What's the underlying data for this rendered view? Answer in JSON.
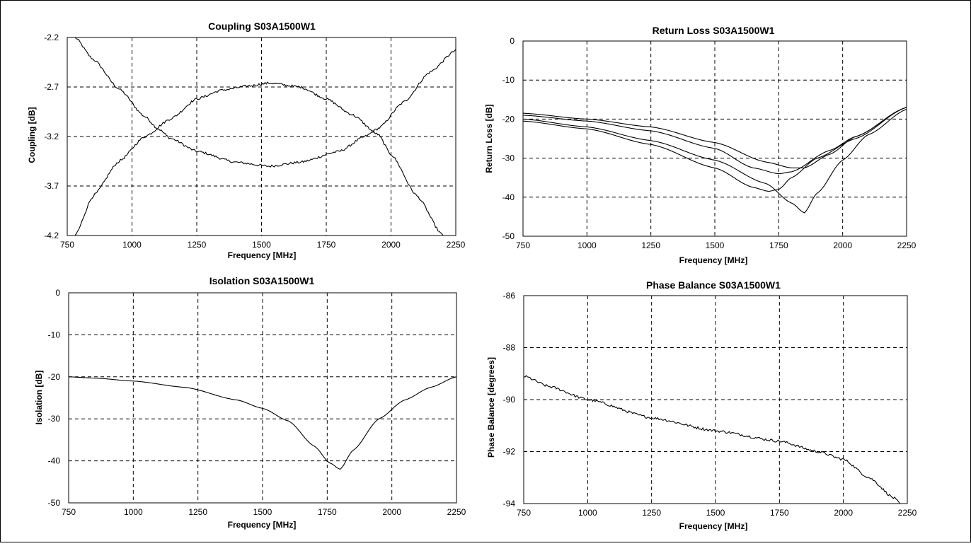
{
  "chart_data": [
    {
      "type": "line",
      "title": "Coupling S03A1500W1",
      "xlabel": "Frequency [MHz]",
      "ylabel": "Coupling [dB]",
      "xlim": [
        750,
        2250
      ],
      "ylim": [
        -4.2,
        -2.2
      ],
      "xticks": [
        "750",
        "1000",
        "1250",
        "1500",
        "1750",
        "2000",
        "2250"
      ],
      "yticks": [
        "-2.2",
        "-2.7",
        "-3.2",
        "-3.7",
        "-4.2"
      ],
      "grid": true,
      "series": [
        {
          "x": [
            780,
            850,
            950,
            1050,
            1100,
            1150,
            1250,
            1400,
            1530,
            1650,
            1800,
            1900,
            1950,
            2050,
            2150,
            2250
          ],
          "y": [
            -2.2,
            -2.42,
            -2.72,
            -3.0,
            -3.12,
            -3.22,
            -3.35,
            -3.46,
            -3.5,
            -3.46,
            -3.35,
            -3.2,
            -3.12,
            -2.85,
            -2.55,
            -2.33
          ]
        },
        {
          "x": [
            780,
            850,
            950,
            1050,
            1150,
            1250,
            1350,
            1450,
            1530,
            1650,
            1750,
            1850,
            1950,
            2000,
            2100,
            2200
          ],
          "y": [
            -4.2,
            -3.8,
            -3.45,
            -3.2,
            -3.02,
            -2.82,
            -2.73,
            -2.69,
            -2.66,
            -2.7,
            -2.82,
            -2.98,
            -3.18,
            -3.38,
            -3.8,
            -4.2
          ]
        }
      ],
      "noise": [
        0.012,
        0.012
      ]
    },
    {
      "type": "line",
      "title": "Return Loss S03A1500W1",
      "xlabel": "Frequency [MHz]",
      "ylabel": "Return Loss [dB]",
      "xlim": [
        750,
        2250
      ],
      "ylim": [
        -50,
        0
      ],
      "xticks": [
        "750",
        "1000",
        "1250",
        "1500",
        "1750",
        "2000",
        "2250"
      ],
      "yticks": [
        "0",
        "-10",
        "-20",
        "-30",
        "-40",
        "-50"
      ],
      "grid": true,
      "series": [
        {
          "x": [
            750,
            1000,
            1250,
            1500,
            1700,
            1800,
            1850,
            1950,
            2050,
            2250
          ],
          "y": [
            -18.5,
            -20,
            -22,
            -26,
            -31,
            -32.5,
            -32.5,
            -29,
            -24.5,
            -17
          ]
        },
        {
          "x": [
            750,
            1000,
            1250,
            1500,
            1650,
            1750,
            1800,
            1950,
            2050,
            2250
          ],
          "y": [
            -19,
            -20.5,
            -23,
            -27.5,
            -32.5,
            -34,
            -33.5,
            -28,
            -24.5,
            -17
          ]
        },
        {
          "x": [
            750,
            1000,
            1250,
            1500,
            1650,
            1710,
            1750,
            1800,
            1900,
            2050,
            2250
          ],
          "y": [
            -20.5,
            -22.5,
            -26.5,
            -32.5,
            -37.5,
            -38.5,
            -38,
            -35,
            -30,
            -25,
            -17
          ]
        },
        {
          "x": [
            750,
            1000,
            1250,
            1500,
            1700,
            1800,
            1850,
            1900,
            2000,
            2100,
            2250
          ],
          "y": [
            -20,
            -22,
            -25.5,
            -30.5,
            -36.5,
            -41.5,
            -44,
            -39,
            -30.5,
            -24,
            -17.5
          ]
        }
      ],
      "noise": [
        0,
        0,
        0,
        0
      ]
    },
    {
      "type": "line",
      "title": "Isolation S03A1500W1",
      "xlabel": "Frequency [MHz]",
      "ylabel": "Isolation [dB]",
      "xlim": [
        750,
        2250
      ],
      "ylim": [
        -50,
        0
      ],
      "xticks": [
        "750",
        "1000",
        "1250",
        "1500",
        "1750",
        "2000",
        "2250"
      ],
      "yticks": [
        "0",
        "-10",
        "-20",
        "-30",
        "-40",
        "-50"
      ],
      "grid": true,
      "series": [
        {
          "x": [
            750,
            850,
            1000,
            1200,
            1400,
            1500,
            1600,
            1700,
            1760,
            1800,
            1850,
            1950,
            2050,
            2150,
            2250
          ],
          "y": [
            -20,
            -20.3,
            -21,
            -22.5,
            -25.5,
            -27.5,
            -30.5,
            -36.5,
            -40.5,
            -42,
            -37.5,
            -30,
            -25.5,
            -22.5,
            -20
          ]
        }
      ],
      "noise": [
        0
      ]
    },
    {
      "type": "line",
      "title": "Phase Balance S03A1500W1",
      "xlabel": "Frequency [MHz]",
      "ylabel": "Phase Balance [degrees]",
      "xlim": [
        750,
        2250
      ],
      "ylim": [
        -94,
        -86
      ],
      "xticks": [
        "750",
        "1000",
        "1250",
        "1500",
        "1750",
        "2000",
        "2250"
      ],
      "yticks": [
        "-86",
        "-88",
        "-90",
        "-92",
        "-94"
      ],
      "grid": true,
      "series": [
        {
          "x": [
            750,
            850,
            1000,
            1250,
            1500,
            1750,
            1900,
            2000,
            2100,
            2200,
            2220
          ],
          "y": [
            -89.1,
            -89.5,
            -90.0,
            -90.7,
            -91.2,
            -91.6,
            -92.0,
            -92.3,
            -93.0,
            -93.8,
            -94.0
          ]
        }
      ],
      "noise": [
        0.05
      ]
    }
  ]
}
